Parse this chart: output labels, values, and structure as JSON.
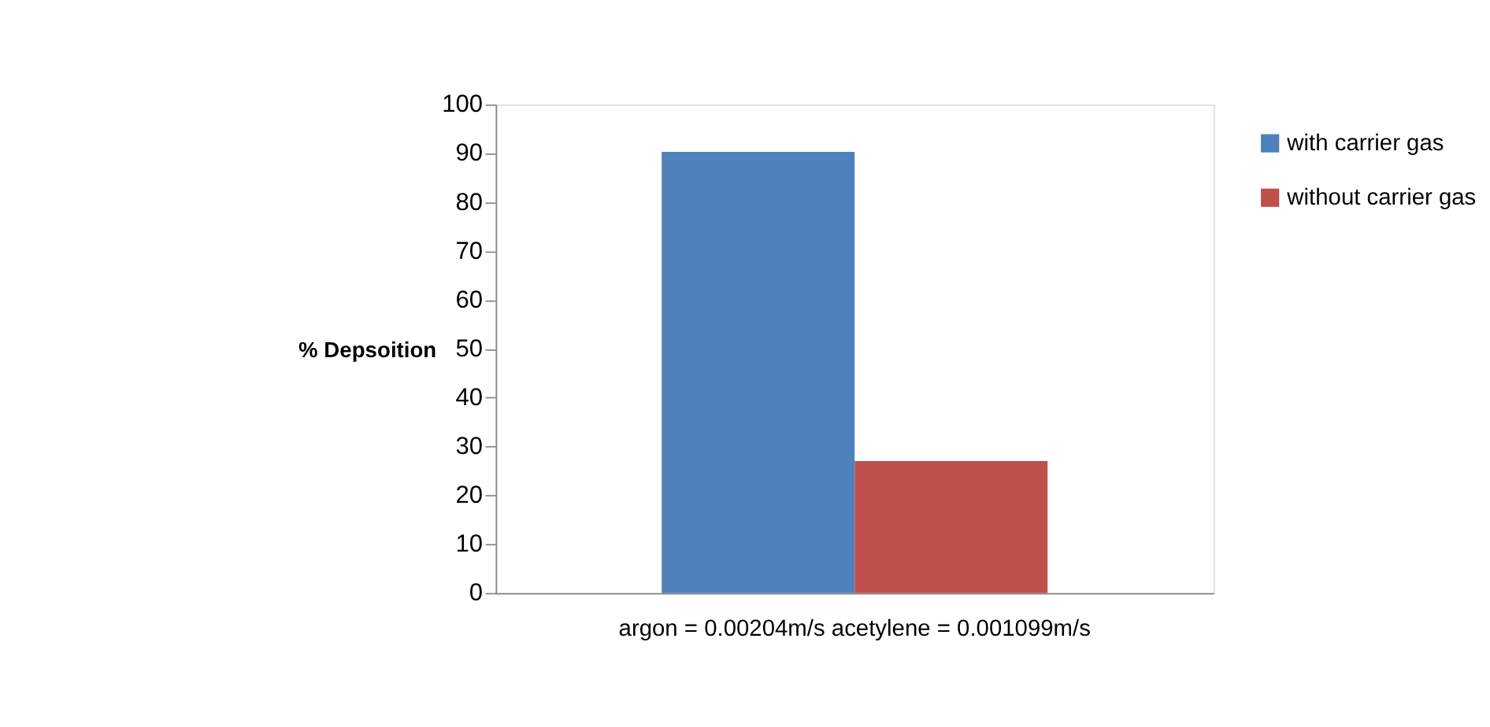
{
  "chart_data": {
    "type": "bar",
    "categories": [
      "argon = 0.00204m/s acetylene = 0.001099m/s"
    ],
    "series": [
      {
        "name": "with carrier gas",
        "color": "#4f81bd",
        "values": [
          90.3
        ]
      },
      {
        "name": "without carrier gas",
        "color": "#c0504d",
        "values": [
          27
        ]
      }
    ],
    "ylabel": "% Depsoition",
    "ylim": [
      0,
      100
    ],
    "yticks": [
      0,
      10,
      20,
      30,
      40,
      50,
      60,
      70,
      80,
      90,
      100
    ],
    "grid": false,
    "legend": "top right"
  }
}
